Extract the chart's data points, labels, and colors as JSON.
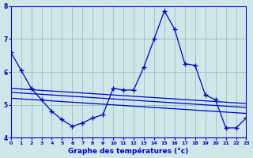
{
  "xlabel": "Graphe des températures (°c)",
  "x_ticks": [
    0,
    1,
    2,
    3,
    4,
    5,
    6,
    7,
    8,
    9,
    10,
    11,
    12,
    13,
    14,
    15,
    16,
    17,
    18,
    19,
    20,
    21,
    22,
    23
  ],
  "ylim": [
    4,
    8
  ],
  "y_ticks": [
    4,
    5,
    6,
    7,
    8
  ],
  "background_color": "#cde8e8",
  "line_color": "#0000cc",
  "grid_color": "#9bbdbd",
  "line1_x": [
    0,
    1,
    2,
    3,
    4,
    5,
    6,
    7,
    8,
    9,
    10,
    11,
    12,
    13,
    14,
    15,
    16,
    17,
    18,
    19,
    20,
    21,
    22,
    23
  ],
  "line1_y": [
    6.6,
    6.05,
    5.5,
    5.15,
    4.8,
    4.55,
    4.35,
    4.45,
    4.6,
    4.7,
    5.5,
    5.45,
    5.45,
    6.15,
    7.0,
    7.85,
    7.3,
    6.25,
    6.2,
    5.3,
    5.15,
    4.3,
    4.3,
    4.6
  ],
  "line2_x": [
    0,
    1,
    2,
    3,
    4,
    5,
    6,
    7,
    8,
    9,
    10,
    11,
    12,
    13,
    14,
    15,
    16,
    17,
    18,
    19,
    20,
    21,
    22,
    23
  ],
  "line2_y": [
    5.5,
    5.48,
    5.46,
    5.44,
    5.42,
    5.4,
    5.38,
    5.36,
    5.34,
    5.32,
    5.3,
    5.28,
    5.26,
    5.24,
    5.22,
    5.2,
    5.18,
    5.16,
    5.14,
    5.12,
    5.1,
    5.08,
    5.06,
    5.04
  ],
  "line3_x": [
    0,
    1,
    2,
    3,
    4,
    5,
    6,
    7,
    8,
    9,
    10,
    11,
    12,
    13,
    14,
    15,
    16,
    17,
    18,
    19,
    20,
    21,
    22,
    23
  ],
  "line3_y": [
    5.38,
    5.36,
    5.34,
    5.32,
    5.3,
    5.28,
    5.26,
    5.24,
    5.22,
    5.2,
    5.18,
    5.16,
    5.14,
    5.12,
    5.1,
    5.08,
    5.06,
    5.04,
    5.02,
    5.0,
    4.98,
    4.96,
    4.94,
    4.92
  ],
  "line4_x": [
    0,
    1,
    2,
    3,
    4,
    5,
    6,
    7,
    8,
    9,
    10,
    11,
    12,
    13,
    14,
    15,
    16,
    17,
    18,
    19,
    20,
    21,
    22,
    23
  ],
  "line4_y": [
    5.2,
    5.18,
    5.16,
    5.14,
    5.12,
    5.1,
    5.08,
    5.06,
    5.04,
    5.02,
    5.0,
    4.98,
    4.96,
    4.94,
    4.92,
    4.9,
    4.88,
    4.86,
    4.84,
    4.82,
    4.8,
    4.78,
    4.76,
    4.74
  ]
}
